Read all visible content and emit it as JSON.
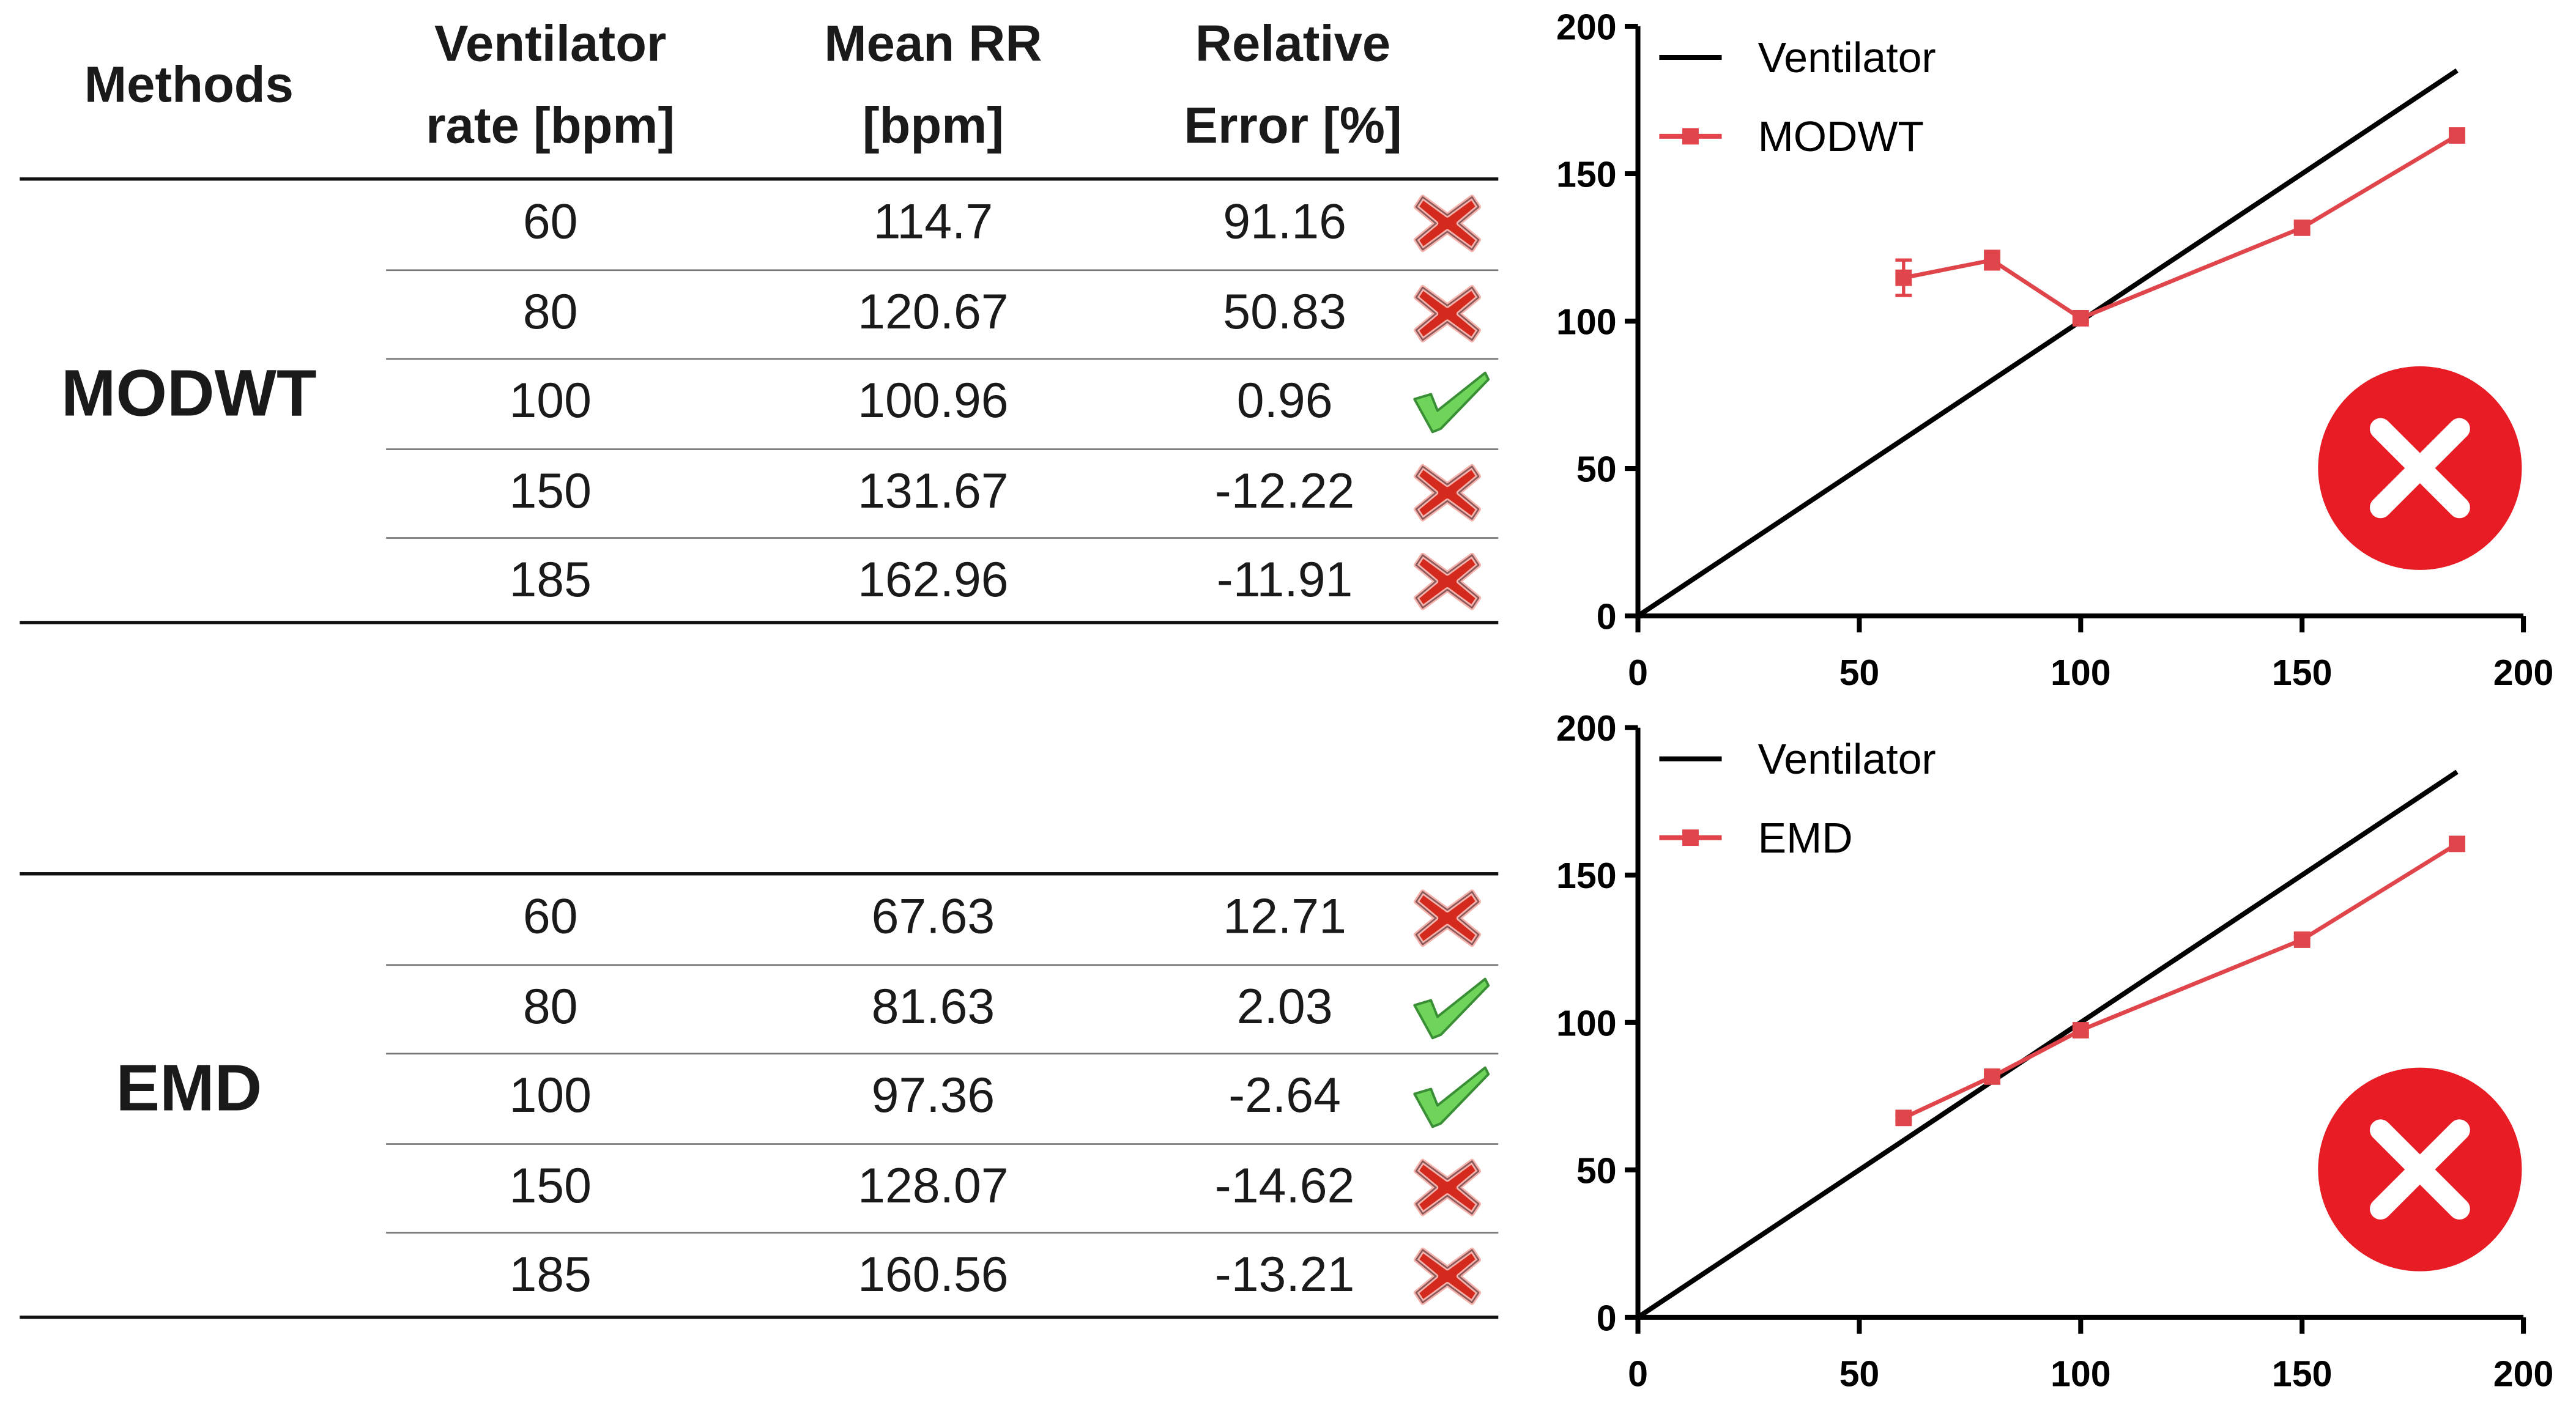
{
  "table": {
    "headers": {
      "methods": "Methods",
      "vent_rate_1": "Ventilator",
      "vent_rate_2": "rate [bpm]",
      "mean_rr_1": "Mean RR",
      "mean_rr_2": "[bpm]",
      "rel_err_1": "Relative",
      "rel_err_2": "Error [%]"
    },
    "groups": [
      {
        "method": "MODWT",
        "rows": [
          {
            "rate": "60",
            "mean": "114.7",
            "err": "91.16",
            "ok": false
          },
          {
            "rate": "80",
            "mean": "120.67",
            "err": "50.83",
            "ok": false
          },
          {
            "rate": "100",
            "mean": "100.96",
            "err": "0.96",
            "ok": true
          },
          {
            "rate": "150",
            "mean": "131.67",
            "err": "-12.22",
            "ok": false
          },
          {
            "rate": "185",
            "mean": "162.96",
            "err": "-11.91",
            "ok": false
          }
        ]
      },
      {
        "method": "EMD",
        "rows": [
          {
            "rate": "60",
            "mean": "67.63",
            "err": "12.71",
            "ok": false
          },
          {
            "rate": "80",
            "mean": "81.63",
            "err": "2.03",
            "ok": true
          },
          {
            "rate": "100",
            "mean": "97.36",
            "err": "-2.64",
            "ok": true
          },
          {
            "rate": "150",
            "mean": "128.07",
            "err": "-14.62",
            "ok": false
          },
          {
            "rate": "185",
            "mean": "160.56",
            "err": "-13.21",
            "ok": false
          }
        ]
      }
    ]
  },
  "colors": {
    "series": "#e0454b",
    "reference": "#000000",
    "fail": "#e81c24",
    "pass": "#4caf3a"
  },
  "chart_data": [
    {
      "type": "line",
      "title": "",
      "xlabel": "",
      "ylabel": "",
      "xlim": [
        0,
        200
      ],
      "ylim": [
        0,
        200
      ],
      "xticks": [
        "0",
        "50",
        "100",
        "150",
        "200"
      ],
      "yticks": [
        "0",
        "50",
        "100",
        "150",
        "200"
      ],
      "legend_position": "top-left",
      "verdict_icon": "fail-circle-icon",
      "series": [
        {
          "name": "Ventilator",
          "x": [
            0,
            185
          ],
          "y": [
            0,
            185
          ]
        },
        {
          "name": "MODWT",
          "x": [
            60,
            80,
            100,
            150,
            185
          ],
          "y": [
            114.7,
            120.67,
            100.96,
            131.67,
            162.96
          ],
          "err": [
            6,
            3,
            1,
            1.5,
            1.5
          ]
        }
      ]
    },
    {
      "type": "line",
      "title": "",
      "xlabel": "",
      "ylabel": "",
      "xlim": [
        0,
        200
      ],
      "ylim": [
        0,
        200
      ],
      "xticks": [
        "0",
        "50",
        "100",
        "150",
        "200"
      ],
      "yticks": [
        "0",
        "50",
        "100",
        "150",
        "200"
      ],
      "legend_position": "top-left",
      "verdict_icon": "fail-circle-icon",
      "series": [
        {
          "name": "Ventilator",
          "x": [
            0,
            185
          ],
          "y": [
            0,
            185
          ]
        },
        {
          "name": "EMD",
          "x": [
            60,
            80,
            100,
            150,
            185
          ],
          "y": [
            67.63,
            81.63,
            97.36,
            128.07,
            160.56
          ],
          "err": [
            1,
            1,
            1,
            1,
            1
          ]
        }
      ]
    }
  ]
}
